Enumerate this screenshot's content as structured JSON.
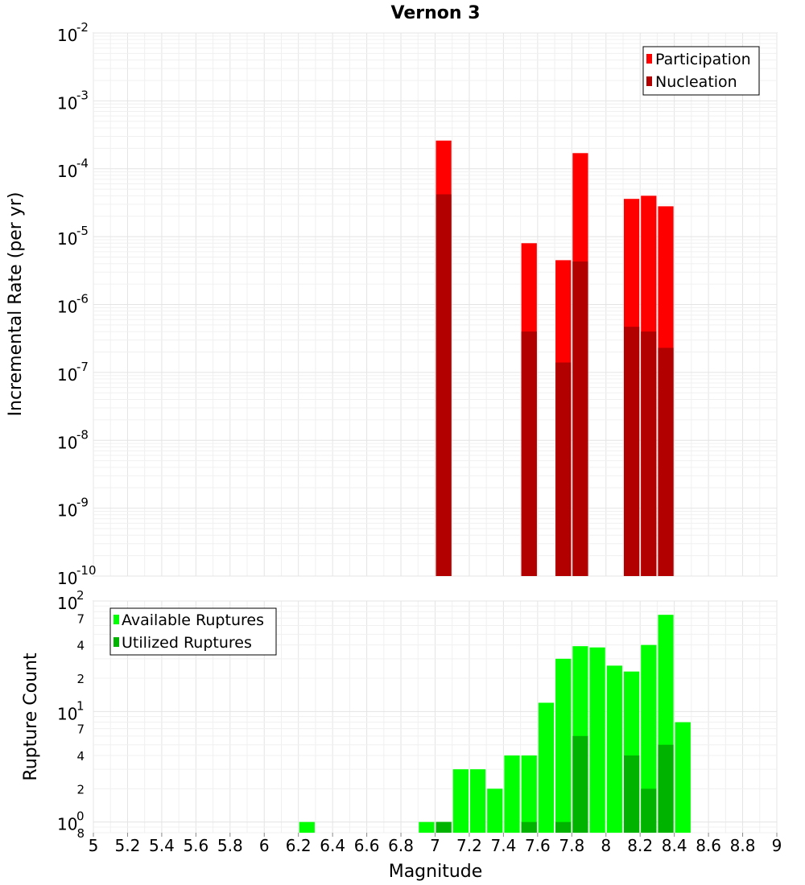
{
  "chart_title": "Vernon 3",
  "x_axis": {
    "label": "Magnitude",
    "range": [
      5,
      9
    ],
    "ticks": [
      "5",
      "5.2",
      "5.4",
      "5.6",
      "5.8",
      "6",
      "6.2",
      "6.4",
      "6.6",
      "6.8",
      "7",
      "7.2",
      "7.4",
      "7.6",
      "7.8",
      "8",
      "8.2",
      "8.4",
      "8.6",
      "8.8",
      "9"
    ]
  },
  "chart_data": [
    {
      "type": "bar",
      "scale": "log",
      "ylabel": "Incremental Rate (per yr)",
      "ylim": [
        1e-10,
        0.01
      ],
      "y_ticks": [
        {
          "base": "10",
          "exp": "-2"
        },
        {
          "base": "10",
          "exp": "-3"
        },
        {
          "base": "10",
          "exp": "-4"
        },
        {
          "base": "10",
          "exp": "-5"
        },
        {
          "base": "10",
          "exp": "-6"
        },
        {
          "base": "10",
          "exp": "-7"
        },
        {
          "base": "10",
          "exp": "-8"
        },
        {
          "base": "10",
          "exp": "-9"
        },
        {
          "base": "10",
          "exp": "-10"
        }
      ],
      "legend": {
        "position": "top-right",
        "entries": [
          {
            "label": "Participation",
            "color": "#ff0000"
          },
          {
            "label": "Nucleation",
            "color": "#b20000"
          }
        ]
      },
      "series": [
        {
          "name": "Participation",
          "color": "#ff0000",
          "points": [
            {
              "x": 7.05,
              "y": 0.00026
            },
            {
              "x": 7.55,
              "y": 8e-06
            },
            {
              "x": 7.75,
              "y": 4.5e-06
            },
            {
              "x": 7.85,
              "y": 0.00017
            },
            {
              "x": 8.15,
              "y": 3.6e-05
            },
            {
              "x": 8.25,
              "y": 4e-05
            },
            {
              "x": 8.35,
              "y": 2.8e-05
            }
          ]
        },
        {
          "name": "Nucleation",
          "color": "#b20000",
          "points": [
            {
              "x": 7.05,
              "y": 4.2e-05
            },
            {
              "x": 7.55,
              "y": 4e-07
            },
            {
              "x": 7.75,
              "y": 1.4e-07
            },
            {
              "x": 7.85,
              "y": 4.3e-06
            },
            {
              "x": 8.15,
              "y": 4.7e-07
            },
            {
              "x": 8.25,
              "y": 4e-07
            },
            {
              "x": 8.35,
              "y": 2.3e-07
            }
          ]
        }
      ]
    },
    {
      "type": "bar",
      "scale": "log",
      "ylabel": "Rupture Count",
      "ylim": [
        0.8,
        100
      ],
      "y_ticks": [
        {
          "base": "10",
          "exp": "2",
          "value": 100
        },
        {
          "base": "10",
          "exp": "1",
          "value": 10
        },
        {
          "base": "10",
          "exp": "0",
          "value": 1
        }
      ],
      "y_minor_labels": [
        {
          "label": "7",
          "value": 70
        },
        {
          "label": "4",
          "value": 40
        },
        {
          "label": "2",
          "value": 20
        },
        {
          "label": "7",
          "value": 7
        },
        {
          "label": "4",
          "value": 4
        },
        {
          "label": "2",
          "value": 2
        },
        {
          "label": "8",
          "value": 0.8
        }
      ],
      "legend": {
        "position": "top-left",
        "entries": [
          {
            "label": "Available Ruptures",
            "color": "#00ff00"
          },
          {
            "label": "Utilized Ruptures",
            "color": "#00b300"
          }
        ]
      },
      "series": [
        {
          "name": "Available Ruptures",
          "color": "#00ff00",
          "points": [
            {
              "x": 6.25,
              "y": 1
            },
            {
              "x": 6.95,
              "y": 1
            },
            {
              "x": 7.05,
              "y": 1
            },
            {
              "x": 7.15,
              "y": 3
            },
            {
              "x": 7.25,
              "y": 3
            },
            {
              "x": 7.35,
              "y": 2
            },
            {
              "x": 7.45,
              "y": 4
            },
            {
              "x": 7.55,
              "y": 4
            },
            {
              "x": 7.65,
              "y": 12
            },
            {
              "x": 7.75,
              "y": 30
            },
            {
              "x": 7.85,
              "y": 39
            },
            {
              "x": 7.95,
              "y": 38
            },
            {
              "x": 8.05,
              "y": 26
            },
            {
              "x": 8.15,
              "y": 23
            },
            {
              "x": 8.25,
              "y": 40
            },
            {
              "x": 8.35,
              "y": 75
            },
            {
              "x": 8.45,
              "y": 8
            }
          ]
        },
        {
          "name": "Utilized Ruptures",
          "color": "#00b300",
          "points": [
            {
              "x": 7.05,
              "y": 1
            },
            {
              "x": 7.55,
              "y": 1
            },
            {
              "x": 7.75,
              "y": 1
            },
            {
              "x": 7.85,
              "y": 6
            },
            {
              "x": 8.15,
              "y": 4
            },
            {
              "x": 8.25,
              "y": 2
            },
            {
              "x": 8.35,
              "y": 5
            }
          ]
        }
      ]
    }
  ]
}
